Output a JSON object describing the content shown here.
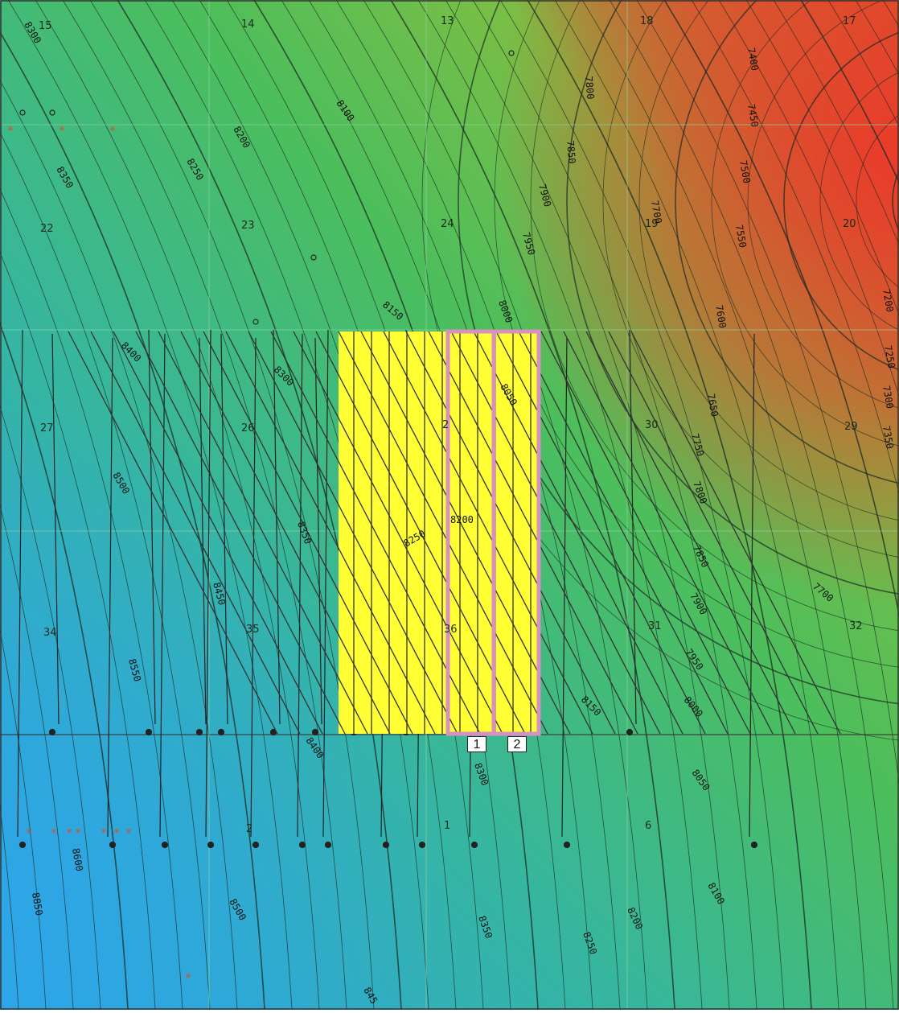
{
  "map": {
    "colors": {
      "deep": "#2ea8e0",
      "mid": "#34b88a",
      "green": "#4cbf5a",
      "high": "#e8452c",
      "highlight": "#ffff33",
      "unit_outline": "#d88fc4",
      "dry_marker": "#e04a2a"
    },
    "sections": [
      {
        "id": "s15",
        "label": "15"
      },
      {
        "id": "s14",
        "label": "14"
      },
      {
        "id": "s13",
        "label": "13"
      },
      {
        "id": "s18",
        "label": "18"
      },
      {
        "id": "s17",
        "label": "17"
      },
      {
        "id": "s22",
        "label": "22"
      },
      {
        "id": "s23",
        "label": "23"
      },
      {
        "id": "s24",
        "label": "24"
      },
      {
        "id": "s19",
        "label": "19"
      },
      {
        "id": "s20",
        "label": "20"
      },
      {
        "id": "s27",
        "label": "27"
      },
      {
        "id": "s26",
        "label": "26"
      },
      {
        "id": "s25",
        "label": "2"
      },
      {
        "id": "s30",
        "label": "30"
      },
      {
        "id": "s29",
        "label": "29"
      },
      {
        "id": "s34",
        "label": "34"
      },
      {
        "id": "s35",
        "label": "35"
      },
      {
        "id": "s36",
        "label": "36"
      },
      {
        "id": "s31",
        "label": "31"
      },
      {
        "id": "s32",
        "label": "32"
      },
      {
        "id": "s2",
        "label": "2"
      },
      {
        "id": "s1",
        "label": "1"
      },
      {
        "id": "s6",
        "label": "6"
      }
    ],
    "contour_labels": [
      "8300",
      "8350",
      "8200",
      "8250",
      "8100",
      "8150",
      "7850",
      "7800",
      "7400",
      "7450",
      "7500",
      "7550",
      "7700",
      "7950",
      "7900",
      "8000",
      "8050",
      "7600",
      "7650",
      "7750",
      "7800",
      "7850",
      "7900",
      "7950",
      "8000",
      "8150",
      "8050",
      "8100",
      "8200",
      "8250",
      "8300",
      "8350",
      "8400",
      "8450",
      "8500",
      "8550",
      "8600",
      "8850",
      "8500",
      "8350",
      "8400",
      "8300",
      "8250",
      "8200",
      "7200",
      "7250",
      "7300",
      "7350",
      "7700",
      "845"
    ],
    "units": [
      {
        "id": "unit-1",
        "label": "1"
      },
      {
        "id": "unit-2",
        "label": "2"
      }
    ]
  }
}
